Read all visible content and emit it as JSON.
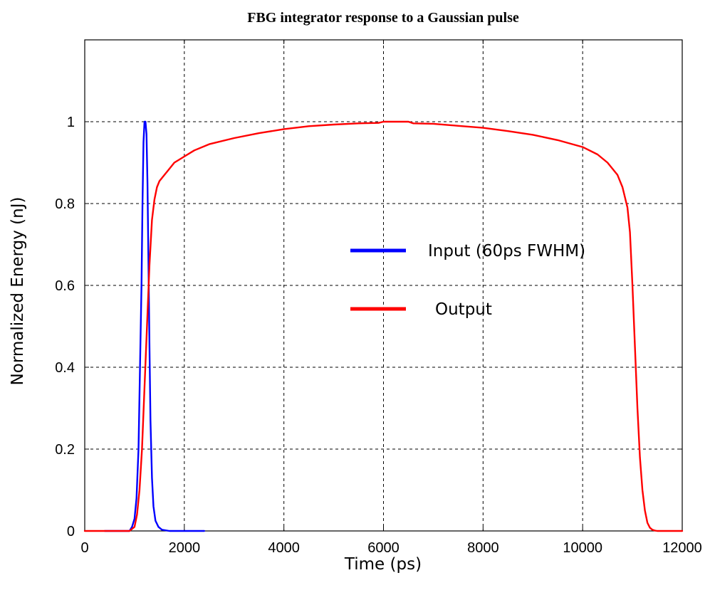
{
  "chart_data": {
    "type": "line",
    "title": "FBG integrator response to a Gaussian pulse",
    "xlabel": "Time (ps)",
    "ylabel": "Normalized Energy (nJ)",
    "xlim": [
      0,
      12000
    ],
    "ylim": [
      0,
      1.2
    ],
    "xticks": [
      0,
      2000,
      4000,
      6000,
      8000,
      10000,
      12000
    ],
    "xtick_labels": [
      "0",
      "2000",
      "4000",
      "6000",
      "8000",
      "10000",
      "12000"
    ],
    "yticks": [
      0,
      0.2,
      0.4,
      0.6,
      0.8,
      1
    ],
    "ytick_labels": [
      "0",
      "0.2",
      "0.4",
      "0.6",
      "0.8",
      "1"
    ],
    "grid": true,
    "legend_position": "center-right",
    "series": [
      {
        "name": "Input (60ps FWHM)",
        "color": "#0000ff",
        "x": [
          400,
          900,
          950,
          1000,
          1040,
          1080,
          1110,
          1140,
          1160,
          1180,
          1200,
          1220,
          1240,
          1260,
          1280,
          1300,
          1320,
          1350,
          1380,
          1420,
          1480,
          1550,
          1700,
          2000,
          2400
        ],
        "y": [
          0,
          0,
          0.01,
          0.03,
          0.08,
          0.2,
          0.4,
          0.6,
          0.8,
          0.95,
          1.0,
          1.0,
          0.97,
          0.85,
          0.65,
          0.45,
          0.27,
          0.13,
          0.06,
          0.025,
          0.01,
          0.003,
          0,
          0,
          0
        ]
      },
      {
        "name": "Output",
        "color": "#ff0000",
        "x": [
          0,
          900,
          1000,
          1050,
          1100,
          1150,
          1200,
          1250,
          1300,
          1350,
          1400,
          1450,
          1500,
          1600,
          1700,
          1800,
          2000,
          2200,
          2500,
          3000,
          3500,
          4000,
          4500,
          5000,
          5500,
          5900,
          6000,
          6500,
          6600,
          7000,
          7500,
          8000,
          8500,
          9000,
          9500,
          10000,
          10300,
          10500,
          10700,
          10800,
          10900,
          10950,
          11000,
          11050,
          11100,
          11150,
          11200,
          11250,
          11300,
          11350,
          11400,
          11450,
          11500,
          11600,
          11800,
          12000
        ],
        "y": [
          0,
          0,
          0.01,
          0.04,
          0.1,
          0.2,
          0.35,
          0.5,
          0.65,
          0.76,
          0.81,
          0.84,
          0.855,
          0.87,
          0.885,
          0.9,
          0.915,
          0.93,
          0.945,
          0.96,
          0.972,
          0.982,
          0.989,
          0.993,
          0.996,
          0.997,
          1.0,
          1.0,
          0.996,
          0.995,
          0.99,
          0.985,
          0.977,
          0.968,
          0.955,
          0.938,
          0.92,
          0.9,
          0.87,
          0.84,
          0.79,
          0.73,
          0.6,
          0.45,
          0.3,
          0.18,
          0.1,
          0.05,
          0.02,
          0.008,
          0.003,
          0.001,
          0,
          0,
          0,
          0
        ]
      }
    ]
  }
}
